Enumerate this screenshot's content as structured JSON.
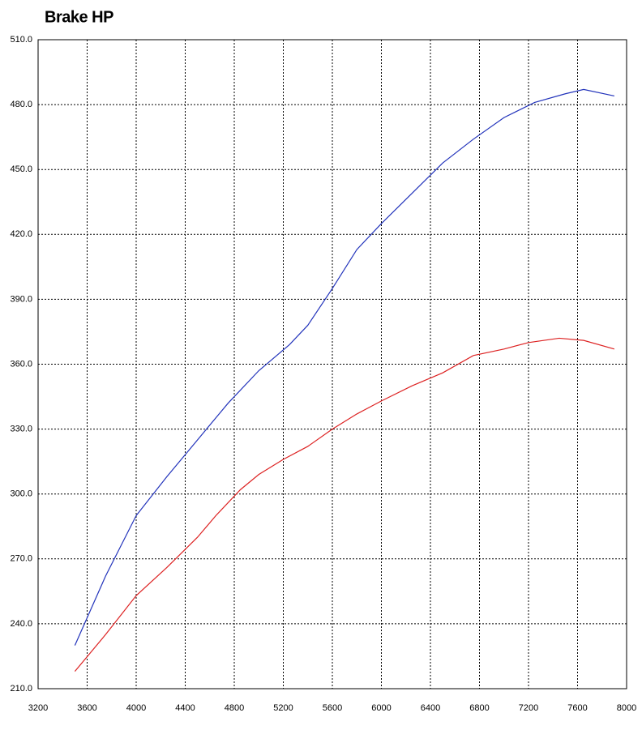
{
  "chart_data": {
    "type": "line",
    "title": "Brake HP",
    "xlim": [
      3200,
      8000
    ],
    "xticks": [
      3200,
      3600,
      4000,
      4400,
      4800,
      5200,
      5600,
      6000,
      6400,
      6800,
      7200,
      7600,
      8000
    ],
    "ylim": [
      210,
      510
    ],
    "yticks": [
      {
        "value": 210,
        "label": "210.0"
      },
      {
        "value": 240,
        "label": "240.0"
      },
      {
        "value": 270,
        "label": "270.0"
      },
      {
        "value": 300,
        "label": "300.0"
      },
      {
        "value": 330,
        "label": "330.0"
      },
      {
        "value": 360,
        "label": "360.0"
      },
      {
        "value": 390,
        "label": "390.0"
      },
      {
        "value": 420,
        "label": "420.0"
      },
      {
        "value": 450,
        "label": "450.0"
      },
      {
        "value": 480,
        "label": "480.0"
      },
      {
        "value": 510,
        "label": "510.0"
      }
    ],
    "grid": true,
    "series": [
      {
        "color": "#2233bb",
        "x": [
          3500,
          3750,
          4000,
          4250,
          4500,
          4750,
          5000,
          5250,
          5400,
          5600,
          5800,
          6000,
          6250,
          6500,
          6750,
          7000,
          7250,
          7500,
          7650,
          7900
        ],
        "values": [
          230,
          262,
          290,
          308,
          325,
          342,
          357,
          369,
          378,
          395,
          413,
          425,
          439,
          453,
          464,
          474,
          481,
          485,
          487,
          484
        ]
      },
      {
        "color": "#dd2222",
        "x": [
          3500,
          3750,
          4000,
          4250,
          4500,
          4650,
          4850,
          5000,
          5200,
          5400,
          5600,
          5800,
          6000,
          6250,
          6500,
          6750,
          7000,
          7200,
          7450,
          7650,
          7900
        ],
        "values": [
          218,
          235,
          253,
          266,
          280,
          290,
          302,
          309,
          316,
          322,
          330,
          337,
          343,
          350,
          356,
          364,
          367,
          370,
          372,
          371,
          367
        ]
      }
    ]
  }
}
